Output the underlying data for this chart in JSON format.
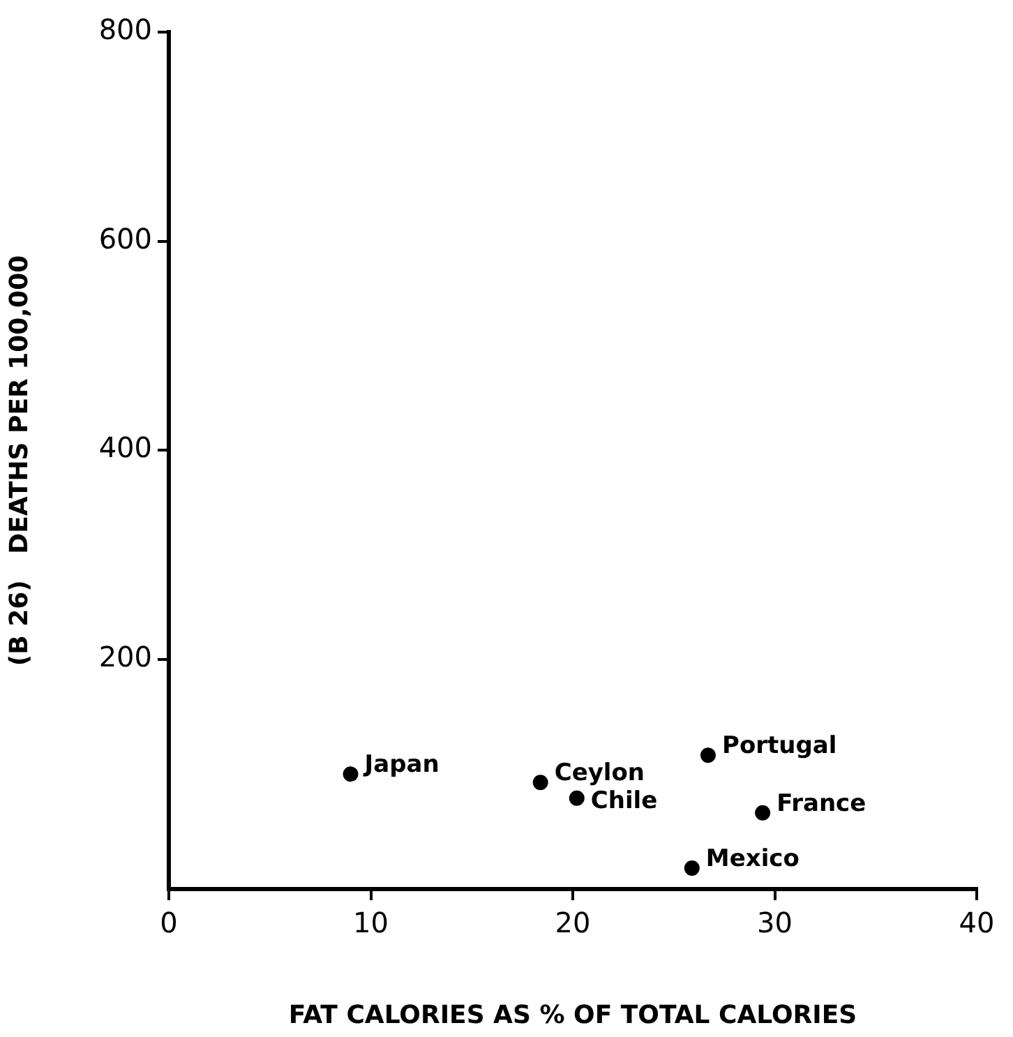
{
  "chart_data": {
    "type": "scatter",
    "xlabel": "FAT CALORIES AS % OF TOTAL CALORIES",
    "ylabel": "(B 26)   DEATHS PER 100,000",
    "x": [
      9,
      18.4,
      20.2,
      26.7,
      29.4,
      25.9
    ],
    "series": [
      {
        "color": "#000000",
        "values": [
          90,
          82,
          67,
          108,
          53,
          0
        ]
      }
    ],
    "xlim": [
      0,
      40
    ],
    "xticks": [
      0,
      10,
      20,
      30,
      40
    ],
    "ylim": [
      -20,
      800
    ],
    "yticks": [
      200,
      400,
      600,
      800
    ],
    "grid": false,
    "legend": false,
    "marker": "circle",
    "annotations": [
      {
        "text": "Japan",
        "x": 9,
        "y": 90
      },
      {
        "text": "Ceylon",
        "x": 18.4,
        "y": 82
      },
      {
        "text": "Chile",
        "x": 20.2,
        "y": 67
      },
      {
        "text": "Portugal",
        "x": 26.7,
        "y": 108
      },
      {
        "text": "France",
        "x": 29.4,
        "y": 53
      },
      {
        "text": "Mexico",
        "x": 25.9,
        "y": 0
      }
    ]
  }
}
